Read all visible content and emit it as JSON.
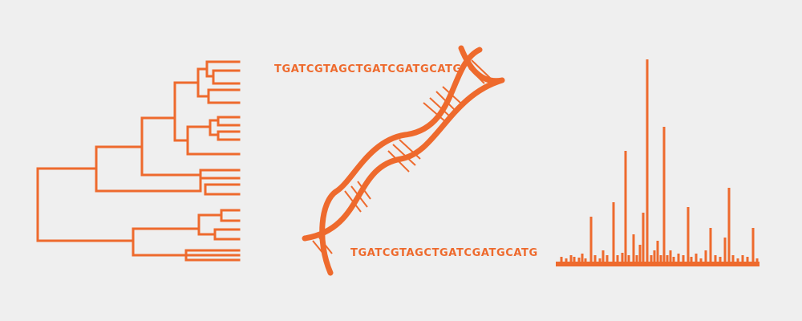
{
  "theme": {
    "background": "#efefef",
    "accent": "#ee6a2d"
  },
  "dna": {
    "sequence_top": "TGATCGTAGCTGATCGATGCATG",
    "sequence_bottom": "TGATCGTAGCTGATCGATGCATG"
  },
  "icons": {
    "left": "phylogenetic-tree-icon",
    "center": "dna-double-helix-icon",
    "right": "mass-spectrum-icon"
  }
}
